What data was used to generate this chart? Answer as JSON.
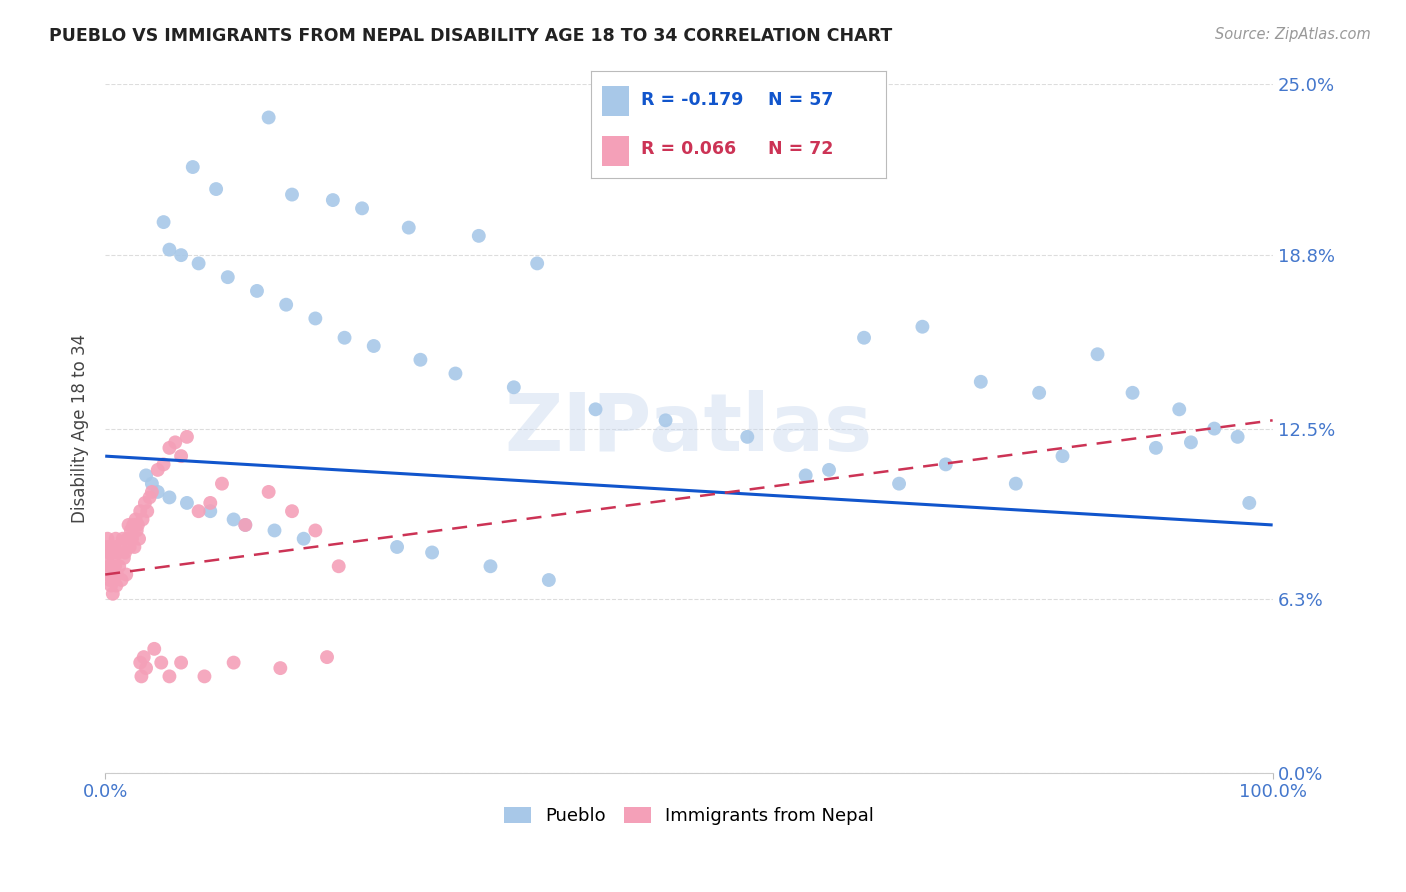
{
  "title": "PUEBLO VS IMMIGRANTS FROM NEPAL DISABILITY AGE 18 TO 34 CORRELATION CHART",
  "source": "Source: ZipAtlas.com",
  "ylabel": "Disability Age 18 to 34",
  "ytick_labels": [
    "0.0%",
    "6.3%",
    "12.5%",
    "18.8%",
    "25.0%"
  ],
  "ytick_values": [
    0.0,
    6.3,
    12.5,
    18.8,
    25.0
  ],
  "xlim": [
    0.0,
    100.0
  ],
  "ylim": [
    0.0,
    25.0
  ],
  "pueblo_color": "#a8c8e8",
  "nepal_color": "#f4a0b8",
  "pueblo_line_color": "#1155cc",
  "nepal_line_color": "#cc3355",
  "watermark": "ZIPatlas",
  "background_color": "#ffffff",
  "pueblo_line_x0": 0.0,
  "pueblo_line_y0": 11.5,
  "pueblo_line_x1": 100.0,
  "pueblo_line_y1": 9.0,
  "nepal_line_x0": 0.0,
  "nepal_line_y0": 7.2,
  "nepal_line_x1": 100.0,
  "nepal_line_y1": 12.8,
  "pueblo_scatter_x": [
    14.0,
    7.5,
    9.5,
    16.0,
    19.5,
    22.0,
    26.0,
    32.0,
    37.0,
    5.0,
    5.5,
    6.5,
    8.0,
    10.5,
    13.0,
    15.5,
    18.0,
    20.5,
    23.0,
    27.0,
    30.0,
    35.0,
    42.0,
    48.0,
    55.0,
    65.0,
    70.0,
    75.0,
    80.0,
    85.0,
    88.0,
    92.0,
    95.0,
    97.0,
    98.0,
    60.0,
    62.0,
    68.0,
    72.0,
    78.0,
    82.0,
    90.0,
    93.0,
    3.5,
    4.0,
    4.5,
    5.5,
    7.0,
    9.0,
    11.0,
    12.0,
    14.5,
    17.0,
    25.0,
    28.0,
    33.0,
    38.0
  ],
  "pueblo_scatter_y": [
    23.8,
    22.0,
    21.2,
    21.0,
    20.8,
    20.5,
    19.8,
    19.5,
    18.5,
    20.0,
    19.0,
    18.8,
    18.5,
    18.0,
    17.5,
    17.0,
    16.5,
    15.8,
    15.5,
    15.0,
    14.5,
    14.0,
    13.2,
    12.8,
    12.2,
    15.8,
    16.2,
    14.2,
    13.8,
    15.2,
    13.8,
    13.2,
    12.5,
    12.2,
    9.8,
    10.8,
    11.0,
    10.5,
    11.2,
    10.5,
    11.5,
    11.8,
    12.0,
    10.8,
    10.5,
    10.2,
    10.0,
    9.8,
    9.5,
    9.2,
    9.0,
    8.8,
    8.5,
    8.2,
    8.0,
    7.5,
    7.0
  ],
  "nepal_scatter_x": [
    0.1,
    0.15,
    0.2,
    0.25,
    0.3,
    0.35,
    0.4,
    0.45,
    0.5,
    0.55,
    0.6,
    0.65,
    0.7,
    0.75,
    0.8,
    0.85,
    0.9,
    0.95,
    1.0,
    1.1,
    1.2,
    1.3,
    1.4,
    1.5,
    1.6,
    1.7,
    1.8,
    1.9,
    2.0,
    2.1,
    2.2,
    2.3,
    2.4,
    2.5,
    2.6,
    2.7,
    2.8,
    2.9,
    3.0,
    3.2,
    3.4,
    3.6,
    3.8,
    4.0,
    4.5,
    5.0,
    5.5,
    6.0,
    6.5,
    7.0,
    8.0,
    9.0,
    10.0,
    12.0,
    14.0,
    16.0,
    18.0,
    20.0,
    3.0,
    3.1,
    3.3,
    3.5,
    4.2,
    4.8,
    5.5,
    6.5,
    8.5,
    11.0,
    15.0,
    19.0
  ],
  "nepal_scatter_y": [
    8.2,
    7.8,
    8.5,
    7.2,
    8.0,
    7.5,
    7.0,
    8.2,
    6.8,
    7.5,
    8.0,
    6.5,
    7.8,
    7.0,
    8.2,
    7.5,
    8.5,
    6.8,
    7.2,
    8.0,
    7.5,
    8.2,
    7.0,
    8.5,
    7.8,
    8.0,
    7.2,
    8.5,
    9.0,
    8.2,
    8.8,
    8.5,
    9.0,
    8.2,
    9.2,
    8.8,
    9.0,
    8.5,
    9.5,
    9.2,
    9.8,
    9.5,
    10.0,
    10.2,
    11.0,
    11.2,
    11.8,
    12.0,
    11.5,
    12.2,
    9.5,
    9.8,
    10.5,
    9.0,
    10.2,
    9.5,
    8.8,
    7.5,
    4.0,
    3.5,
    4.2,
    3.8,
    4.5,
    4.0,
    3.5,
    4.0,
    3.5,
    4.0,
    3.8,
    4.2
  ]
}
